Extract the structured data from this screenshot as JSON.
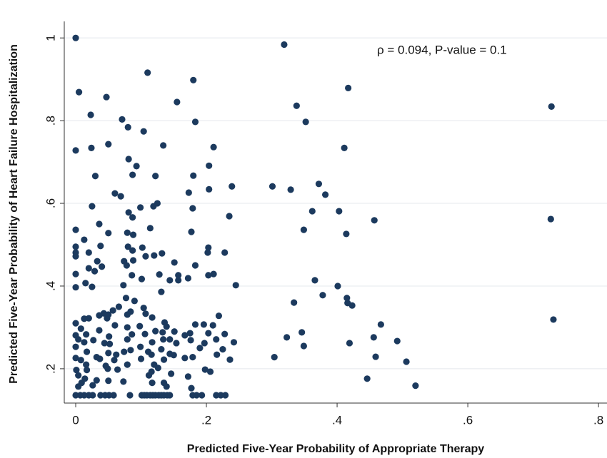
{
  "chart_data": {
    "type": "scatter",
    "x_label": "Predicted Five-Year Probability of Appropriate Therapy",
    "y_label": "Predicted Five-Year Probability of Heart Failure Hospitalization",
    "annotation": "ρ = 0.094, P-value = 0.1",
    "color": "#1c3a5e",
    "grid": true,
    "xlim": [
      -0.0175,
      0.813
    ],
    "ylim": [
      0.117,
      1.04
    ],
    "xticks": [
      0,
      {
        "value": 0.2,
        "label": ".2"
      },
      {
        "value": 0.4,
        "label": ".4"
      },
      {
        "value": 0.6,
        "label": ".6"
      },
      {
        "value": 0.8,
        "label": ".8"
      }
    ],
    "yticks": [
      {
        "value": 0.2,
        "label": ".2"
      },
      {
        "value": 0.4,
        "label": ".4"
      },
      {
        "value": 0.6,
        "label": ".6"
      },
      {
        "value": 0.8,
        "label": ".8"
      },
      1
    ],
    "x": [
      0,
      0.319,
      0.417,
      0.728,
      0.11,
      0.18,
      0.005,
      0.047,
      0.155,
      0.338,
      0.023,
      0.071,
      0.183,
      0.352,
      0.08,
      0.104,
      0,
      0.024,
      0.05,
      0.134,
      0.211,
      0.411,
      0.081,
      0.093,
      0.204,
      0.03,
      0.087,
      0.122,
      0.18,
      0.239,
      0.301,
      0.329,
      0.372,
      0.204,
      0.06,
      0.069,
      0.173,
      0.382,
      0.125,
      0.119,
      0.099,
      0.025,
      0.179,
      0.235,
      0.362,
      0.403,
      0.081,
      0.087,
      0.457,
      0.727,
      0.036,
      0,
      0.114,
      0.349,
      0.079,
      0.177,
      0.05,
      0.414,
      0.088,
      0.013,
      0,
      0.038,
      0.08,
      0.102,
      0.203,
      0,
      0.02,
      0.087,
      0.228,
      0.107,
      0.132,
      0.12,
      0.202,
      0,
      0.033,
      0.151,
      0.074,
      0.088,
      0.02,
      0.04,
      0.078,
      0.183,
      0,
      0.029,
      0.086,
      0.128,
      0.157,
      0.203,
      0.144,
      0.172,
      0.101,
      0.157,
      0.211,
      0.366,
      0,
      0.015,
      0.025,
      0.073,
      0.245,
      0.401,
      0.131,
      0.378,
      0.077,
      0.415,
      0.09,
      0.334,
      0.416,
      0.423,
      0.066,
      0.057,
      0.104,
      0.043,
      0.05,
      0.084,
      0.036,
      0.079,
      0.107,
      0.219,
      0.013,
      0.02,
      0.048,
      0.117,
      0.731,
      0,
      0.136,
      0.183,
      0.196,
      0.21,
      0.139,
      0.467,
      0.06,
      0.098,
      0.079,
      0.008,
      0.036,
      0.122,
      0.133,
      0.151,
      0.346,
      0.175,
      0.203,
      0.228,
      0,
      0.016,
      0.086,
      0.106,
      0.051,
      0.167,
      0.323,
      0.456,
      0.004,
      0.027,
      0.079,
      0.134,
      0.144,
      0.176,
      0.215,
      0.242,
      0.013,
      0.044,
      0.052,
      0.117,
      0.154,
      0.197,
      0.419,
      0.492,
      0.349,
      0,
      0.099,
      0.19,
      0.225,
      0.131,
      0.017,
      0.074,
      0.084,
      0.111,
      0.05,
      0.144,
      0.062,
      0.116,
      0.216,
      0.15,
      0.304,
      0.459,
      0,
      0.032,
      0.179,
      0.236,
      0.008,
      0.037,
      0.1,
      0.135,
      0.059,
      0.167,
      0.506,
      0.016,
      0.046,
      0.079,
      0.12,
      0.049,
      0.126,
      0.001,
      0.017,
      0.064,
      0.116,
      0.198,
      0.206,
      0.004,
      0.146,
      0.112,
      0.172,
      0.014,
      0.446,
      0.032,
      0.05,
      0.009,
      0.117,
      0.135,
      0.073,
      0.004,
      0.52,
      0.026,
      0.139,
      0.177,
      0,
      0.007,
      0.013,
      0.02,
      0.026,
      0.038,
      0.045,
      0.051,
      0.058,
      0.083,
      0.101,
      0.105,
      0.109,
      0.114,
      0.118,
      0.122,
      0.127,
      0.131,
      0.135,
      0.14,
      0.144,
      0.179,
      0.185,
      0.193,
      0.215,
      0.222,
      0.229
    ],
    "values": [
      1.0,
      0.984,
      0.879,
      0.834,
      0.916,
      0.898,
      0.869,
      0.857,
      0.845,
      0.836,
      0.814,
      0.803,
      0.797,
      0.797,
      0.784,
      0.774,
      0.728,
      0.734,
      0.743,
      0.74,
      0.736,
      0.734,
      0.707,
      0.69,
      0.691,
      0.666,
      0.669,
      0.666,
      0.667,
      0.641,
      0.641,
      0.633,
      0.647,
      0.634,
      0.624,
      0.617,
      0.626,
      0.621,
      0.6,
      0.593,
      0.59,
      0.593,
      0.588,
      0.569,
      0.581,
      0.581,
      0.578,
      0.566,
      0.559,
      0.562,
      0.55,
      0.536,
      0.54,
      0.536,
      0.529,
      0.531,
      0.528,
      0.526,
      0.524,
      0.512,
      0.495,
      0.497,
      0.495,
      0.493,
      0.493,
      0.481,
      0.481,
      0.486,
      0.481,
      0.472,
      0.479,
      0.474,
      0.481,
      0.472,
      0.46,
      0.457,
      0.46,
      0.462,
      0.443,
      0.447,
      0.45,
      0.45,
      0.429,
      0.436,
      0.426,
      0.428,
      0.426,
      0.426,
      0.414,
      0.419,
      0.417,
      0.414,
      0.429,
      0.414,
      0.397,
      0.407,
      0.398,
      0.402,
      0.402,
      0.4,
      0.386,
      0.378,
      0.371,
      0.371,
      0.364,
      0.36,
      0.359,
      0.353,
      0.35,
      0.341,
      0.347,
      0.334,
      0.331,
      0.338,
      0.329,
      0.331,
      0.333,
      0.328,
      0.321,
      0.322,
      0.322,
      0.324,
      0.319,
      0.31,
      0.312,
      0.307,
      0.307,
      0.305,
      0.302,
      0.307,
      0.305,
      0.303,
      0.3,
      0.297,
      0.293,
      0.291,
      0.288,
      0.29,
      0.288,
      0.286,
      0.286,
      0.284,
      0.281,
      0.283,
      0.283,
      0.284,
      0.278,
      0.281,
      0.276,
      0.276,
      0.271,
      0.269,
      0.271,
      0.271,
      0.271,
      0.269,
      0.271,
      0.264,
      0.264,
      0.262,
      0.26,
      0.264,
      0.262,
      0.262,
      0.262,
      0.267,
      0.255,
      0.253,
      0.253,
      0.25,
      0.247,
      0.247,
      0.241,
      0.241,
      0.245,
      0.241,
      0.238,
      0.236,
      0.234,
      0.234,
      0.234,
      0.233,
      0.228,
      0.229,
      0.226,
      0.228,
      0.228,
      0.222,
      0.221,
      0.224,
      0.224,
      0.222,
      0.221,
      0.226,
      0.217,
      0.21,
      0.207,
      0.21,
      0.21,
      0.2,
      0.202,
      0.197,
      0.197,
      0.198,
      0.193,
      0.198,
      0.193,
      0.184,
      0.188,
      0.184,
      0.181,
      0.176,
      0.176,
      0.172,
      0.171,
      0.166,
      0.166,
      0.166,
      0.169,
      0.157,
      0.159,
      0.16,
      0.157,
      0.153,
      0.136,
      0.136,
      0.136,
      0.136,
      0.136,
      0.136,
      0.136,
      0.136,
      0.136,
      0.136,
      0.136,
      0.136,
      0.136,
      0.136,
      0.136,
      0.136,
      0.136,
      0.136,
      0.136,
      0.136,
      0.136,
      0.136,
      0.136,
      0.136,
      0.136,
      0.136,
      0.136
    ]
  }
}
